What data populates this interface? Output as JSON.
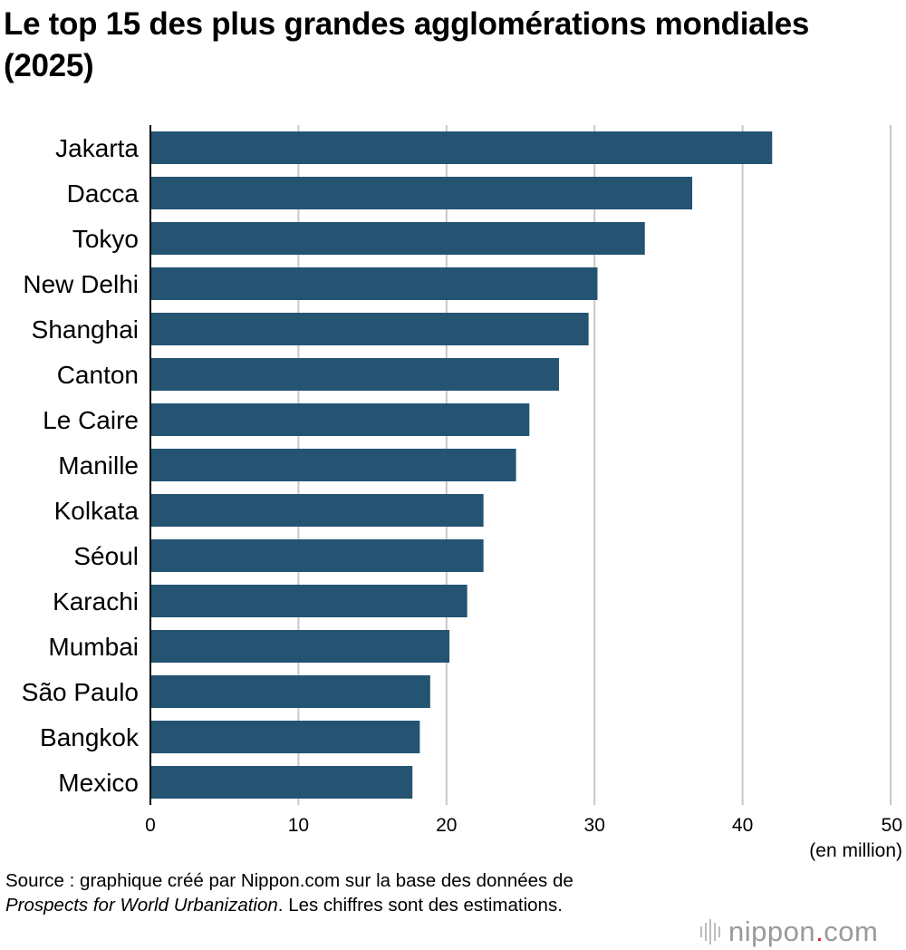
{
  "title": "Le top 15 des plus grandes agglomérations mondiales (2025)",
  "colors": {
    "bar": "#245472",
    "grid": "#c8c8c8",
    "axis": "#000000"
  },
  "chart_data": {
    "type": "bar",
    "orientation": "horizontal",
    "categories": [
      "Jakarta",
      "Dacca",
      "Tokyo",
      "New Delhi",
      "Shanghai",
      "Canton",
      "Le Caire",
      "Manille",
      "Kolkata",
      "Séoul",
      "Karachi",
      "Mumbai",
      "São Paulo",
      "Bangkok",
      "Mexico"
    ],
    "values": [
      42.0,
      36.6,
      33.4,
      30.2,
      29.6,
      27.6,
      25.6,
      24.7,
      22.5,
      22.5,
      21.4,
      20.2,
      18.9,
      18.2,
      17.7
    ],
    "xlim": [
      0,
      50
    ],
    "xticks": [
      0,
      10,
      20,
      30,
      40,
      50
    ],
    "unit_label": "(en million)",
    "grid": true,
    "legend": "none"
  },
  "source": {
    "line1": "Source : graphique créé par Nippon.com sur la base des données de",
    "italic": "Prospects for World Urbanization",
    "line2_rest": ". Les chiffres sont des estimations."
  },
  "logo": {
    "name": "nippon",
    "dot": ".",
    "tld": "com"
  }
}
